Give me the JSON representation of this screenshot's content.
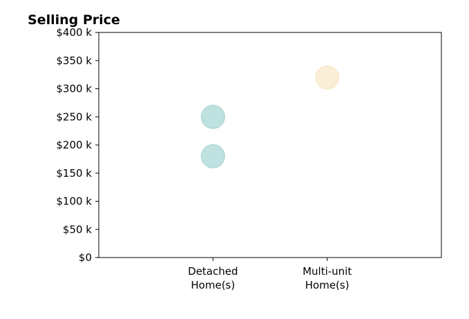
{
  "chart_data": {
    "type": "scatter",
    "title": "Selling Price",
    "xlabel": "",
    "ylabel": "",
    "categories": [
      [
        "Detached",
        "Home(s)"
      ],
      [
        "Multi-unit",
        "Home(s)"
      ]
    ],
    "x_range": [
      -1,
      2
    ],
    "ylim": [
      0,
      400000
    ],
    "y_ticks": [
      {
        "value": 0,
        "label": "$0"
      },
      {
        "value": 50000,
        "label": "$50 k"
      },
      {
        "value": 100000,
        "label": "$100 k"
      },
      {
        "value": 150000,
        "label": "$150 k"
      },
      {
        "value": 200000,
        "label": "$200 k"
      },
      {
        "value": 250000,
        "label": "$250 k"
      },
      {
        "value": 300000,
        "label": "$300 k"
      },
      {
        "value": 350000,
        "label": "$350 k"
      },
      {
        "value": 400000,
        "label": "$400 k"
      }
    ],
    "grid": false,
    "points": [
      {
        "category": 0,
        "value": 250000,
        "color": "#7fc4c0"
      },
      {
        "category": 0,
        "value": 180000,
        "color": "#7fc4c0"
      },
      {
        "category": 1,
        "value": 320000,
        "color": "#f5deb0"
      }
    ]
  }
}
